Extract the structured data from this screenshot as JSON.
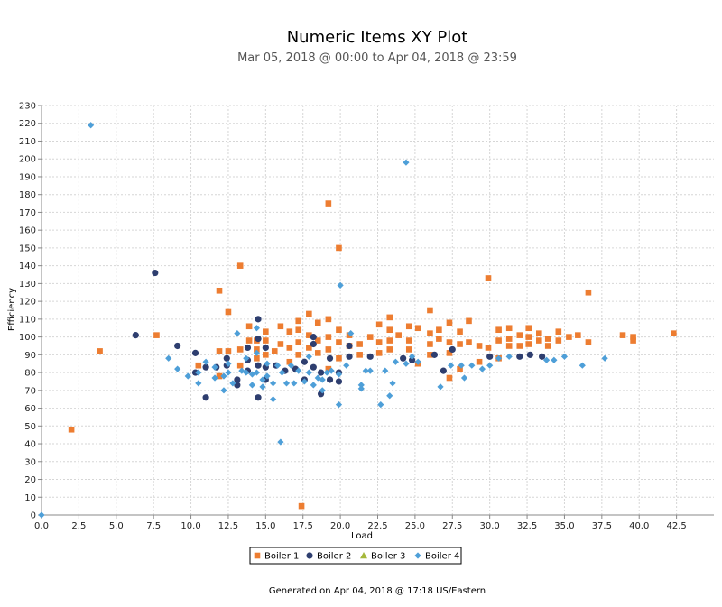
{
  "chart_data": {
    "type": "scatter",
    "title": "Numeric Items XY Plot",
    "subtitle": "Mar 05, 2018 @ 00:00 to Apr 04, 2018 @ 23:59",
    "xlabel": "Load",
    "ylabel": "Efficiency",
    "xlim": [
      0,
      45
    ],
    "ylim": [
      0,
      230
    ],
    "xticks": [
      "0.0",
      "2.5",
      "5.0",
      "7.5",
      "10.0",
      "12.5",
      "15.0",
      "17.5",
      "20.0",
      "22.5",
      "25.0",
      "27.5",
      "30.0",
      "32.5",
      "35.0",
      "37.5",
      "40.0",
      "42.5"
    ],
    "yticks": [
      "0",
      "10",
      "20",
      "30",
      "40",
      "50",
      "60",
      "70",
      "80",
      "90",
      "100",
      "110",
      "120",
      "130",
      "140",
      "150",
      "160",
      "170",
      "180",
      "190",
      "200",
      "210",
      "220",
      "230"
    ],
    "grid": true,
    "legend": "bottom",
    "footer": "Generated on Apr 04, 2018 @ 17:18 US/Eastern",
    "series": [
      {
        "name": "Boiler 1",
        "color": "#ed7d31",
        "marker": "square",
        "points": [
          [
            2.0,
            48
          ],
          [
            3.9,
            92
          ],
          [
            7.7,
            101
          ],
          [
            10.5,
            84
          ],
          [
            11.9,
            78
          ],
          [
            11.9,
            92
          ],
          [
            11.9,
            126
          ],
          [
            12.5,
            114
          ],
          [
            12.5,
            92
          ],
          [
            13.3,
            140
          ],
          [
            13.3,
            84
          ],
          [
            13.3,
            93
          ],
          [
            13.9,
            106
          ],
          [
            13.9,
            98
          ],
          [
            14.4,
            98
          ],
          [
            14.4,
            88
          ],
          [
            14.4,
            93
          ],
          [
            15.0,
            103
          ],
          [
            15.0,
            98
          ],
          [
            15.0,
            90
          ],
          [
            15.6,
            92
          ],
          [
            16.0,
            106
          ],
          [
            16.0,
            96
          ],
          [
            16.6,
            103
          ],
          [
            16.6,
            94
          ],
          [
            16.6,
            86
          ],
          [
            17.2,
            109
          ],
          [
            17.2,
            104
          ],
          [
            17.2,
            97
          ],
          [
            17.2,
            90
          ],
          [
            17.4,
            5
          ],
          [
            17.9,
            113
          ],
          [
            17.9,
            101
          ],
          [
            17.9,
            94
          ],
          [
            18.5,
            108
          ],
          [
            18.5,
            98
          ],
          [
            18.5,
            91
          ],
          [
            19.2,
            175
          ],
          [
            19.2,
            110
          ],
          [
            19.2,
            100
          ],
          [
            19.2,
            93
          ],
          [
            19.2,
            82
          ],
          [
            19.9,
            150
          ],
          [
            19.9,
            104
          ],
          [
            19.9,
            97
          ],
          [
            19.9,
            88
          ],
          [
            20.6,
            101
          ],
          [
            20.6,
            95
          ],
          [
            21.3,
            96
          ],
          [
            21.3,
            90
          ],
          [
            22.0,
            100
          ],
          [
            22.6,
            107
          ],
          [
            22.6,
            97
          ],
          [
            22.6,
            91
          ],
          [
            23.3,
            111
          ],
          [
            23.3,
            104
          ],
          [
            23.3,
            98
          ],
          [
            23.3,
            93
          ],
          [
            23.9,
            101
          ],
          [
            24.6,
            106
          ],
          [
            24.6,
            98
          ],
          [
            24.6,
            93
          ],
          [
            25.2,
            105
          ],
          [
            25.2,
            85
          ],
          [
            26.0,
            115
          ],
          [
            26.0,
            102
          ],
          [
            26.0,
            96
          ],
          [
            26.0,
            90
          ],
          [
            26.6,
            104
          ],
          [
            26.6,
            99
          ],
          [
            27.3,
            108
          ],
          [
            27.3,
            97
          ],
          [
            27.3,
            91
          ],
          [
            27.3,
            77
          ],
          [
            28.0,
            103
          ],
          [
            28.0,
            96
          ],
          [
            28.0,
            82
          ],
          [
            28.6,
            109
          ],
          [
            28.6,
            97
          ],
          [
            29.3,
            95
          ],
          [
            29.3,
            86
          ],
          [
            29.9,
            133
          ],
          [
            29.9,
            94
          ],
          [
            30.6,
            104
          ],
          [
            30.6,
            98
          ],
          [
            30.6,
            88
          ],
          [
            31.3,
            105
          ],
          [
            31.3,
            99
          ],
          [
            31.3,
            95
          ],
          [
            32.0,
            101
          ],
          [
            32.0,
            95
          ],
          [
            32.6,
            105
          ],
          [
            32.6,
            100
          ],
          [
            32.6,
            96
          ],
          [
            33.3,
            102
          ],
          [
            33.3,
            98
          ],
          [
            33.9,
            99
          ],
          [
            33.9,
            95
          ],
          [
            34.6,
            103
          ],
          [
            34.6,
            98
          ],
          [
            35.3,
            100
          ],
          [
            35.9,
            101
          ],
          [
            36.6,
            125
          ],
          [
            36.6,
            97
          ],
          [
            38.9,
            101
          ],
          [
            39.6,
            100
          ],
          [
            39.6,
            98
          ],
          [
            42.3,
            102
          ]
        ]
      },
      {
        "name": "Boiler 2",
        "color": "#2e3e6f",
        "marker": "circle",
        "points": [
          [
            6.3,
            101
          ],
          [
            7.6,
            136
          ],
          [
            9.1,
            95
          ],
          [
            10.3,
            80
          ],
          [
            10.3,
            91
          ],
          [
            11.0,
            66
          ],
          [
            11.0,
            83
          ],
          [
            11.7,
            83
          ],
          [
            12.4,
            88
          ],
          [
            12.4,
            84
          ],
          [
            13.1,
            76
          ],
          [
            13.1,
            73
          ],
          [
            13.8,
            94
          ],
          [
            13.8,
            87
          ],
          [
            13.8,
            81
          ],
          [
            14.5,
            110
          ],
          [
            14.5,
            99
          ],
          [
            14.5,
            84
          ],
          [
            14.5,
            66
          ],
          [
            15.0,
            94
          ],
          [
            15.0,
            83
          ],
          [
            15.0,
            76
          ],
          [
            15.7,
            84
          ],
          [
            16.3,
            81
          ],
          [
            17.0,
            82
          ],
          [
            17.6,
            86
          ],
          [
            17.6,
            76
          ],
          [
            18.2,
            100
          ],
          [
            18.2,
            96
          ],
          [
            18.2,
            83
          ],
          [
            18.7,
            80
          ],
          [
            18.7,
            68
          ],
          [
            19.3,
            88
          ],
          [
            19.3,
            76
          ],
          [
            19.9,
            80
          ],
          [
            19.9,
            75
          ],
          [
            20.6,
            89
          ],
          [
            20.6,
            95
          ],
          [
            22.0,
            89
          ],
          [
            24.2,
            88
          ],
          [
            24.8,
            87
          ],
          [
            26.3,
            90
          ],
          [
            26.9,
            81
          ],
          [
            27.5,
            93
          ],
          [
            30.0,
            89
          ],
          [
            32.0,
            89
          ],
          [
            32.7,
            90
          ],
          [
            33.5,
            89
          ]
        ]
      },
      {
        "name": "Boiler 3",
        "color": "#a5b83b",
        "marker": "triangle",
        "points": []
      },
      {
        "name": "Boiler 4",
        "color": "#4e9fd8",
        "marker": "diamond",
        "points": [
          [
            0.0,
            0
          ],
          [
            3.3,
            219
          ],
          [
            8.5,
            88
          ],
          [
            9.1,
            82
          ],
          [
            9.8,
            78
          ],
          [
            10.5,
            74
          ],
          [
            10.5,
            80
          ],
          [
            11.0,
            86
          ],
          [
            11.6,
            83
          ],
          [
            11.6,
            77
          ],
          [
            12.2,
            70
          ],
          [
            12.2,
            78
          ],
          [
            12.5,
            85
          ],
          [
            12.5,
            80
          ],
          [
            12.8,
            74
          ],
          [
            13.1,
            102
          ],
          [
            13.4,
            81
          ],
          [
            13.7,
            80
          ],
          [
            13.7,
            88
          ],
          [
            14.1,
            73
          ],
          [
            14.1,
            79
          ],
          [
            14.4,
            105
          ],
          [
            14.4,
            91
          ],
          [
            14.4,
            80
          ],
          [
            14.8,
            72
          ],
          [
            14.8,
            76
          ],
          [
            15.1,
            85
          ],
          [
            15.1,
            78
          ],
          [
            15.5,
            65
          ],
          [
            15.5,
            74
          ],
          [
            15.8,
            84
          ],
          [
            16.0,
            41
          ],
          [
            16.1,
            80
          ],
          [
            16.4,
            74
          ],
          [
            16.7,
            84
          ],
          [
            16.9,
            74
          ],
          [
            17.2,
            81
          ],
          [
            17.6,
            75
          ],
          [
            17.9,
            80
          ],
          [
            17.9,
            89
          ],
          [
            18.2,
            73
          ],
          [
            18.5,
            77
          ],
          [
            18.8,
            70
          ],
          [
            18.8,
            76
          ],
          [
            19.1,
            80
          ],
          [
            19.4,
            81
          ],
          [
            19.9,
            62
          ],
          [
            19.9,
            79
          ],
          [
            20.0,
            129
          ],
          [
            20.4,
            84
          ],
          [
            20.7,
            102
          ],
          [
            21.4,
            73
          ],
          [
            21.4,
            71
          ],
          [
            21.7,
            81
          ],
          [
            22.0,
            81
          ],
          [
            22.7,
            62
          ],
          [
            23.0,
            81
          ],
          [
            23.3,
            67
          ],
          [
            23.5,
            74
          ],
          [
            23.7,
            86
          ],
          [
            24.4,
            198
          ],
          [
            24.4,
            85
          ],
          [
            24.8,
            89
          ],
          [
            25.2,
            86
          ],
          [
            26.7,
            72
          ],
          [
            27.4,
            84
          ],
          [
            28.1,
            84
          ],
          [
            28.3,
            77
          ],
          [
            28.8,
            84
          ],
          [
            29.5,
            82
          ],
          [
            30.0,
            84
          ],
          [
            30.6,
            88
          ],
          [
            31.3,
            89
          ],
          [
            33.8,
            87
          ],
          [
            34.3,
            87
          ],
          [
            35.0,
            89
          ],
          [
            36.2,
            84
          ],
          [
            37.7,
            88
          ]
        ]
      }
    ]
  }
}
